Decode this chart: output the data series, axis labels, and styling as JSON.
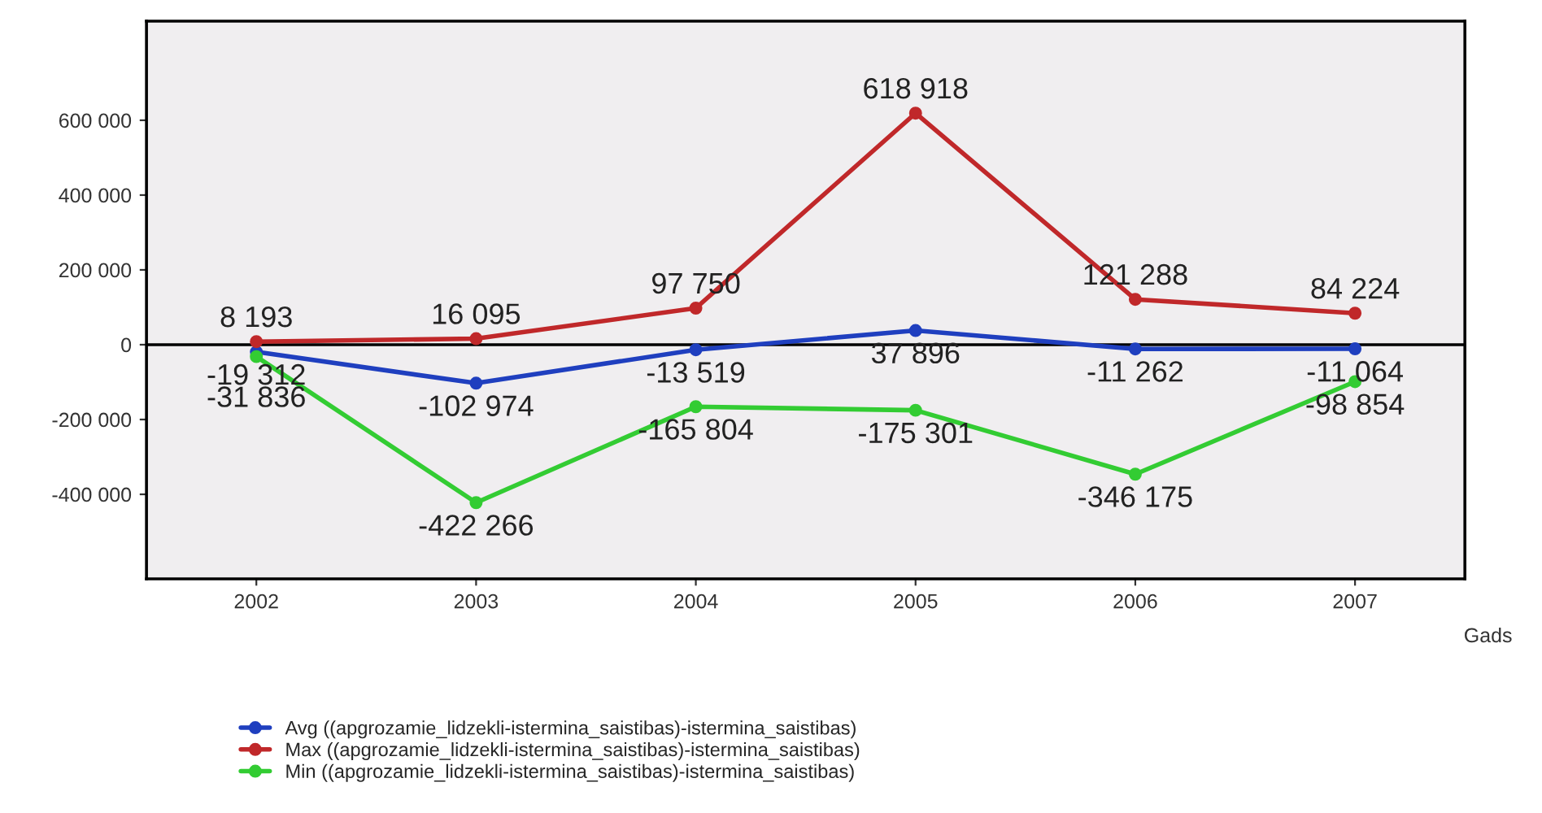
{
  "chart_data": {
    "type": "line",
    "xlabel": "Gads",
    "categories": [
      "2002",
      "2003",
      "2004",
      "2005",
      "2006",
      "2007"
    ],
    "series": [
      {
        "name": "Avg ((apgrozamie_lidzekli-istermina_saistibas)-istermina_saistibas)",
        "color": "#1f3fbf",
        "values": [
          -19312,
          -102974,
          -13519,
          37896,
          -11262,
          -11064
        ]
      },
      {
        "name": "Max ((apgrozamie_lidzekli-istermina_saistibas)-istermina_saistibas)",
        "color": "#c0282a",
        "values": [
          8193,
          16095,
          97750,
          618918,
          121288,
          84224
        ]
      },
      {
        "name": "Min ((apgrozamie_lidzekli-istermina_saistibas)-istermina_saistibas)",
        "color": "#33cc33",
        "values": [
          -31836,
          -422266,
          -165804,
          -175301,
          -346175,
          -98854
        ]
      }
    ],
    "ylim": [
      -626000,
      865000
    ],
    "yticks": [
      {
        "value": -400000,
        "label": "-400 000"
      },
      {
        "value": -200000,
        "label": "-200 000"
      },
      0,
      {
        "value": 200000,
        "label": "200 000"
      },
      {
        "value": 400000,
        "label": "400 000"
      },
      {
        "value": 600000,
        "label": "600 000"
      }
    ],
    "ref_lines": [
      {
        "axis": "y",
        "value": 0,
        "color": "#000000"
      }
    ],
    "data_labels": true,
    "marker": "circle",
    "line_style": "solid",
    "grid": false,
    "legend": "bottom left"
  }
}
